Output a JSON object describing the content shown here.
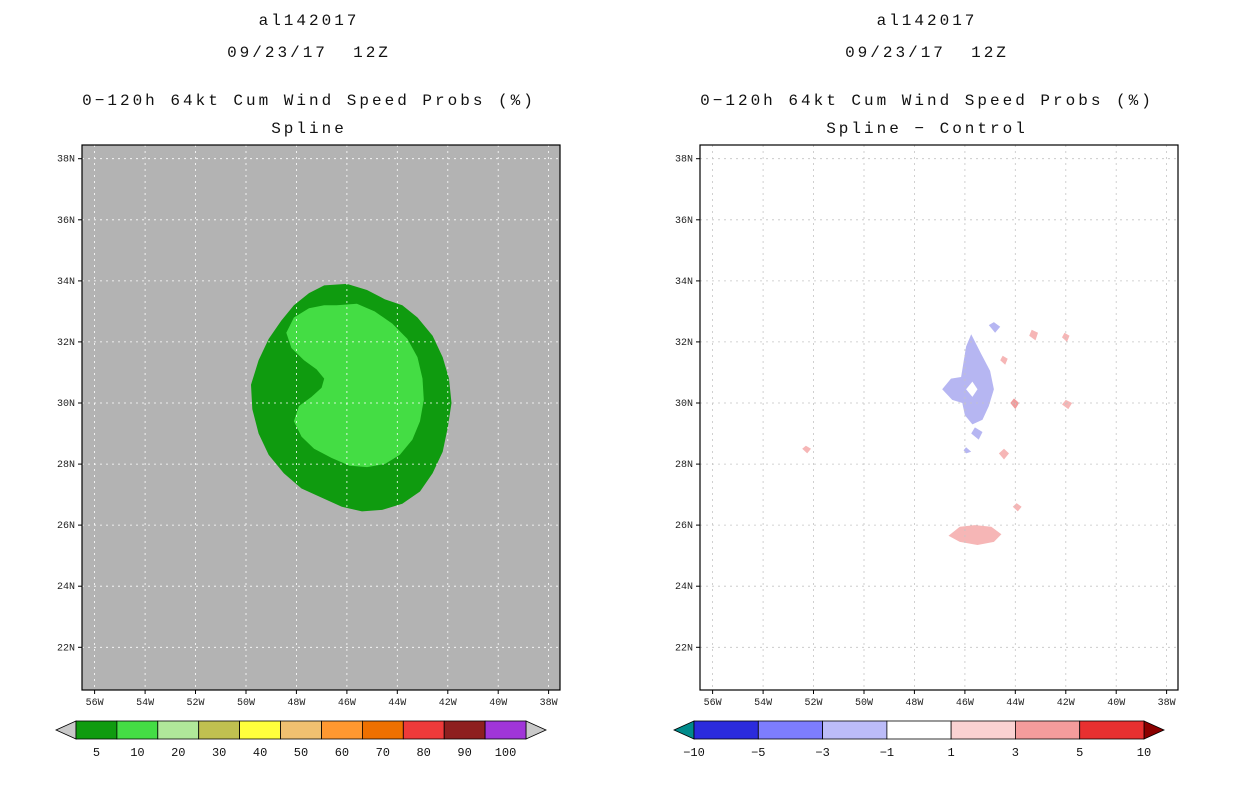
{
  "chart_data": [
    {
      "type": "contour_map",
      "units": "%",
      "title_lines": [
        "al142017",
        "09/23/17  12Z"
      ],
      "subtitle_lines": [
        "0−120h 64kt Cum Wind Speed Probs (%)",
        "Spline"
      ],
      "map": {
        "background": "#b3b3b3",
        "extent": {
          "lon": [
            -56.5,
            -37.55
          ],
          "lat": [
            20.6,
            38.45
          ]
        },
        "grid": {
          "color": "#ffffff",
          "style": "dashed",
          "step_deg": 2
        },
        "x_axis": {
          "values": [
            -56,
            -54,
            -52,
            -50,
            -48,
            -46,
            -44,
            -42,
            -40,
            -38
          ],
          "labels": [
            "56W",
            "54W",
            "52W",
            "50W",
            "48W",
            "46W",
            "44W",
            "42W",
            "40W",
            "38W"
          ]
        },
        "y_axis": {
          "values": [
            22,
            24,
            26,
            28,
            30,
            32,
            34,
            36,
            38
          ],
          "labels": [
            "22N",
            "24N",
            "26N",
            "28N",
            "30N",
            "32N",
            "34N",
            "36N",
            "38N"
          ]
        },
        "shapes": [
          {
            "name": "prob-5-contour",
            "level": 5,
            "color": "#0f9b0f",
            "points": [
              [
                -46.9,
                33.85
              ],
              [
                -46.0,
                33.9
              ],
              [
                -45.2,
                33.7
              ],
              [
                -44.5,
                33.4
              ],
              [
                -43.8,
                33.2
              ],
              [
                -43.2,
                32.8
              ],
              [
                -42.6,
                32.2
              ],
              [
                -42.2,
                31.5
              ],
              [
                -41.95,
                30.8
              ],
              [
                -41.85,
                30.0
              ],
              [
                -42.0,
                29.2
              ],
              [
                -42.2,
                28.4
              ],
              [
                -42.6,
                27.7
              ],
              [
                -43.1,
                27.1
              ],
              [
                -43.8,
                26.7
              ],
              [
                -44.6,
                26.5
              ],
              [
                -45.4,
                26.45
              ],
              [
                -46.2,
                26.6
              ],
              [
                -47.0,
                26.9
              ],
              [
                -47.8,
                27.2
              ],
              [
                -48.5,
                27.7
              ],
              [
                -49.1,
                28.3
              ],
              [
                -49.5,
                29.0
              ],
              [
                -49.75,
                29.8
              ],
              [
                -49.8,
                30.6
              ],
              [
                -49.5,
                31.4
              ],
              [
                -49.1,
                32.1
              ],
              [
                -48.6,
                32.7
              ],
              [
                -48.1,
                33.2
              ],
              [
                -47.5,
                33.6
              ]
            ]
          },
          {
            "name": "prob-10-contour",
            "level": 10,
            "color": "#44dd44",
            "points": [
              [
                -46.4,
                33.2
              ],
              [
                -45.6,
                33.25
              ],
              [
                -44.9,
                33.0
              ],
              [
                -44.2,
                32.6
              ],
              [
                -43.6,
                32.1
              ],
              [
                -43.2,
                31.5
              ],
              [
                -43.0,
                30.8
              ],
              [
                -42.95,
                30.1
              ],
              [
                -43.1,
                29.4
              ],
              [
                -43.4,
                28.8
              ],
              [
                -43.9,
                28.3
              ],
              [
                -44.5,
                28.0
              ],
              [
                -45.2,
                27.9
              ],
              [
                -45.9,
                27.95
              ],
              [
                -46.6,
                28.2
              ],
              [
                -47.3,
                28.5
              ],
              [
                -47.8,
                28.9
              ],
              [
                -48.1,
                29.4
              ],
              [
                -47.9,
                29.9
              ],
              [
                -47.4,
                30.2
              ],
              [
                -47.0,
                30.5
              ],
              [
                -46.9,
                30.8
              ],
              [
                -47.2,
                31.1
              ],
              [
                -47.7,
                31.4
              ],
              [
                -48.2,
                31.8
              ],
              [
                -48.4,
                32.3
              ],
              [
                -48.1,
                32.8
              ],
              [
                -47.5,
                33.1
              ],
              [
                -46.9,
                33.2
              ]
            ]
          }
        ]
      },
      "colorbar": {
        "label_at": "cell",
        "labels": [
          "5",
          "10",
          "20",
          "30",
          "40",
          "50",
          "60",
          "70",
          "80",
          "90",
          "100"
        ],
        "cells": [
          "#0f9b0f",
          "#44dd44",
          "#b0e89a",
          "#c0c050",
          "#ffff3c",
          "#f0c070",
          "#ff9830",
          "#ee7000",
          "#ee3a3a",
          "#8e1f1f",
          "#a035d8"
        ],
        "arrow_left": "#c9c9c9",
        "arrow_right": "#c9c9c9"
      }
    },
    {
      "type": "contour_map_difference",
      "units": "%",
      "title_lines": [
        "al142017",
        "09/23/17  12Z"
      ],
      "subtitle_lines": [
        "0−120h 64kt Cum Wind Speed Probs (%)",
        "Spline − Control"
      ],
      "map": {
        "background": "#ffffff",
        "extent": {
          "lon": [
            -56.5,
            -37.55
          ],
          "lat": [
            20.6,
            38.45
          ]
        },
        "grid": {
          "color": "#c4c4c4",
          "style": "dashed",
          "step_deg": 2
        },
        "x_axis": {
          "values": [
            -56,
            -54,
            -52,
            -50,
            -48,
            -46,
            -44,
            -42,
            -40,
            -38
          ],
          "labels": [
            "56W",
            "54W",
            "52W",
            "50W",
            "48W",
            "46W",
            "44W",
            "42W",
            "40W",
            "38W"
          ]
        },
        "y_axis": {
          "values": [
            22,
            24,
            26,
            28,
            30,
            32,
            34,
            36,
            38
          ],
          "labels": [
            "22N",
            "24N",
            "26N",
            "28N",
            "30N",
            "32N",
            "34N",
            "36N",
            "38N"
          ]
        },
        "shapes": [
          {
            "name": "neg-diff-main-patch",
            "level": -1,
            "color": "#b6b6f2",
            "points": [
              [
                -45.75,
                32.25
              ],
              [
                -45.35,
                31.6
              ],
              [
                -45.0,
                31.05
              ],
              [
                -44.85,
                30.45
              ],
              [
                -45.05,
                29.9
              ],
              [
                -45.3,
                29.45
              ],
              [
                -45.7,
                29.3
              ],
              [
                -46.0,
                29.6
              ],
              [
                -46.1,
                30.0
              ],
              [
                -46.5,
                30.1
              ],
              [
                -46.9,
                30.45
              ],
              [
                -46.55,
                30.8
              ],
              [
                -46.15,
                30.85
              ],
              [
                -46.05,
                31.35
              ],
              [
                -45.95,
                31.85
              ]
            ]
          },
          {
            "name": "neg-diff-hole",
            "level": 0,
            "color": "#ffffff",
            "points": [
              [
                -45.5,
                30.45
              ],
              [
                -45.7,
                30.2
              ],
              [
                -45.95,
                30.45
              ],
              [
                -45.7,
                30.7
              ]
            ]
          },
          {
            "name": "neg-diff-sliver",
            "level": -1,
            "color": "#b6b6f2",
            "points": [
              [
                -45.75,
                29.0
              ],
              [
                -45.45,
                28.8
              ],
              [
                -45.3,
                29.05
              ],
              [
                -45.6,
                29.2
              ]
            ]
          },
          {
            "name": "neg-diff-dot-top",
            "level": -1,
            "color": "#b6b6f2",
            "points": [
              [
                -45.05,
                32.55
              ],
              [
                -44.8,
                32.3
              ],
              [
                -44.6,
                32.5
              ],
              [
                -44.85,
                32.65
              ]
            ]
          },
          {
            "name": "neg-diff-dot-low",
            "level": -1,
            "color": "#b6b6f2",
            "points": [
              [
                -45.95,
                28.55
              ],
              [
                -45.75,
                28.4
              ],
              [
                -45.95,
                28.35
              ],
              [
                -46.05,
                28.45
              ]
            ]
          },
          {
            "name": "pos-diff-streak",
            "level": 1,
            "color": "#f6b6b6",
            "points": [
              [
                -46.65,
                25.65
              ],
              [
                -46.2,
                25.45
              ],
              [
                -45.5,
                25.35
              ],
              [
                -44.85,
                25.45
              ],
              [
                -44.55,
                25.7
              ],
              [
                -44.95,
                25.95
              ],
              [
                -45.6,
                26.0
              ],
              [
                -46.2,
                25.95
              ]
            ]
          },
          {
            "name": "pos-diff-patch-28n",
            "level": 1,
            "color": "#f6b6b6",
            "points": [
              [
                -44.65,
                28.35
              ],
              [
                -44.45,
                28.15
              ],
              [
                -44.25,
                28.35
              ],
              [
                -44.45,
                28.5
              ]
            ]
          },
          {
            "name": "pos-diff-patch-30n",
            "level": 3,
            "color": "#f09c9c",
            "points": [
              [
                -44.2,
                30.0
              ],
              [
                -44.0,
                29.8
              ],
              [
                -43.85,
                30.0
              ],
              [
                -44.05,
                30.15
              ]
            ]
          },
          {
            "name": "pos-diff-dot-42w",
            "level": 1,
            "color": "#f6b6b6",
            "points": [
              [
                -42.15,
                29.95
              ],
              [
                -41.9,
                29.8
              ],
              [
                -41.75,
                30.0
              ],
              [
                -42.0,
                30.1
              ]
            ]
          },
          {
            "name": "pos-diff-dot-32n-a",
            "level": 1,
            "color": "#f6b6b6",
            "points": [
              [
                -43.45,
                32.2
              ],
              [
                -43.2,
                32.05
              ],
              [
                -43.1,
                32.3
              ],
              [
                -43.35,
                32.4
              ]
            ]
          },
          {
            "name": "pos-diff-dot-32n-b",
            "level": 1,
            "color": "#f6b6b6",
            "points": [
              [
                -42.15,
                32.15
              ],
              [
                -41.95,
                32.0
              ],
              [
                -41.85,
                32.2
              ],
              [
                -42.05,
                32.3
              ]
            ]
          },
          {
            "name": "pos-diff-dot-52w",
            "level": 1,
            "color": "#f6b6b6",
            "points": [
              [
                -52.45,
                28.5
              ],
              [
                -52.25,
                28.35
              ],
              [
                -52.1,
                28.5
              ],
              [
                -52.3,
                28.6
              ]
            ]
          },
          {
            "name": "pos-diff-dot-26n",
            "level": 1,
            "color": "#f6b6b6",
            "points": [
              [
                -44.1,
                26.6
              ],
              [
                -43.9,
                26.45
              ],
              [
                -43.75,
                26.6
              ],
              [
                -43.95,
                26.72
              ]
            ]
          },
          {
            "name": "pos-diff-dot-31n",
            "level": 1,
            "color": "#f6b6b6",
            "points": [
              [
                -44.6,
                31.4
              ],
              [
                -44.4,
                31.25
              ],
              [
                -44.3,
                31.45
              ],
              [
                -44.5,
                31.55
              ]
            ]
          }
        ]
      },
      "colorbar": {
        "label_at": "boundary",
        "labels": [
          "−10",
          "−5",
          "−3",
          "−1",
          "1",
          "3",
          "5",
          "10"
        ],
        "cells": [
          "#2b2bdd",
          "#7d7dfd",
          "#bcbcf8",
          "#ffffff",
          "#fad2d2",
          "#f49c9c",
          "#e83030"
        ],
        "arrow_left": "#008b8b",
        "arrow_right": "#8b0000"
      }
    }
  ]
}
